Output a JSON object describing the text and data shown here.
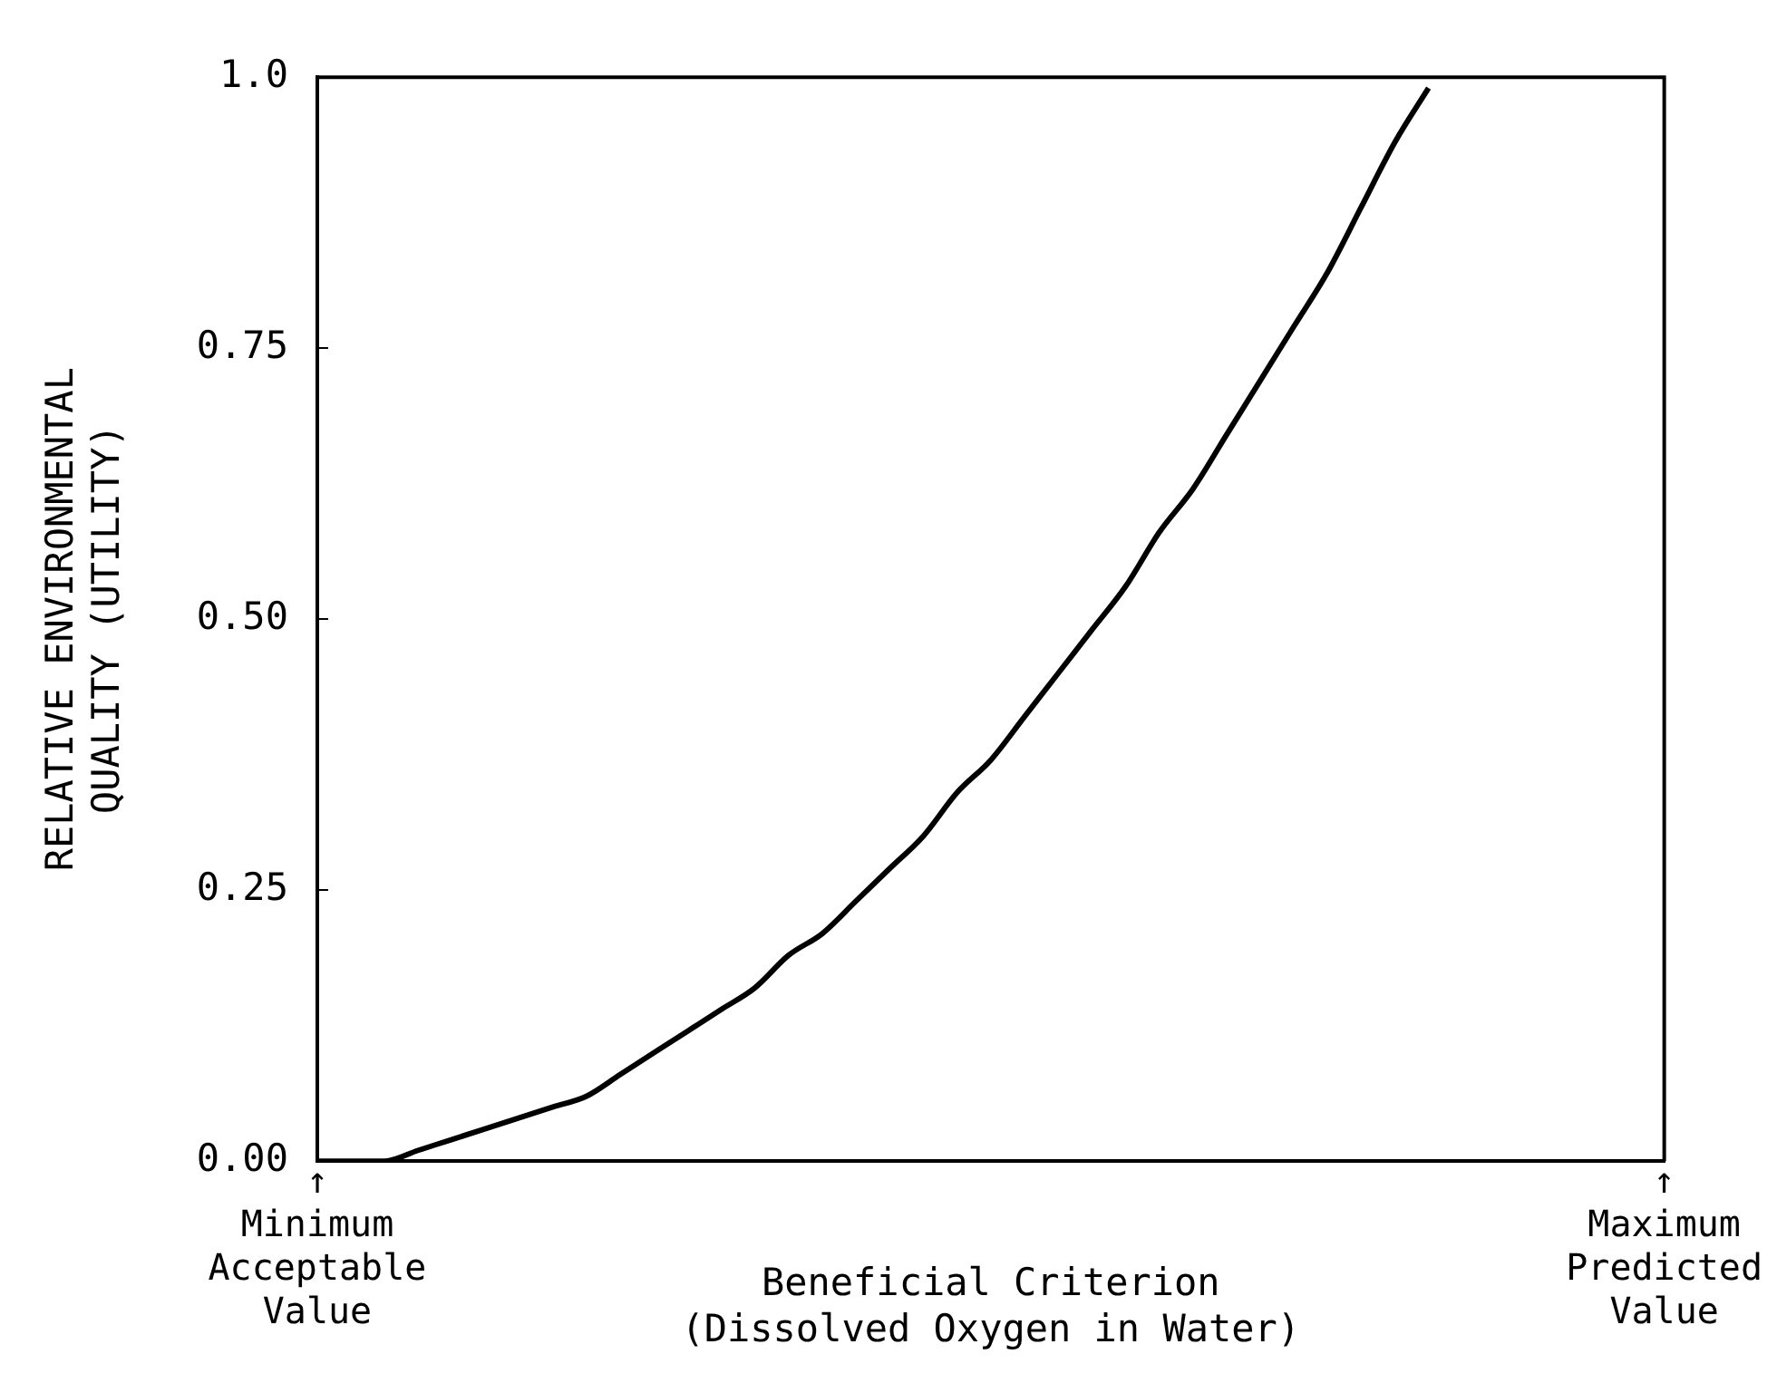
{
  "chart_data": {
    "type": "line",
    "xlabel": "Beneficial Criterion\n(Dissolved Oxygen in Water)",
    "ylabel": "RELATIVE ENVIRONMENTAL\nQUALITY (UTILITY)",
    "categories": [
      "↑\nMinimum\nAcceptable\nValue",
      null,
      null,
      null,
      null,
      null,
      null,
      null,
      null,
      null,
      null,
      null,
      null,
      null,
      null,
      null,
      null,
      null,
      null,
      null,
      null,
      null,
      null,
      null,
      null,
      null,
      null,
      null,
      null,
      null,
      null,
      null,
      null,
      null,
      null,
      null,
      null,
      null,
      null,
      null,
      "↑\nMaximum\nPredicted\nValue"
    ],
    "series": [
      {
        "color": "#000000",
        "values": [
          0,
          0,
          0,
          0.01,
          0.02,
          0.03,
          0.04,
          0.05,
          0.06,
          0.08,
          0.1,
          0.12,
          0.14,
          0.16,
          0.19,
          0.21,
          0.24,
          0.27,
          0.3,
          0.34,
          0.37,
          0.41,
          0.45,
          0.49,
          0.53,
          0.58,
          0.62,
          0.67,
          0.72,
          0.77,
          0.82,
          0.88,
          0.94,
          0.99,
          null,
          null,
          null,
          null,
          null,
          null,
          null
        ]
      }
    ],
    "ylim": [
      0,
      1
    ],
    "yticks": [
      {
        "value": 0,
        "label": "0.00"
      },
      {
        "value": 0.25,
        "label": "0.25"
      },
      {
        "value": 0.5,
        "label": "0.50"
      },
      {
        "value": 0.75,
        "label": "0.75"
      },
      {
        "value": 1,
        "label": "1.0"
      }
    ],
    "grid": false,
    "legend": false
  }
}
